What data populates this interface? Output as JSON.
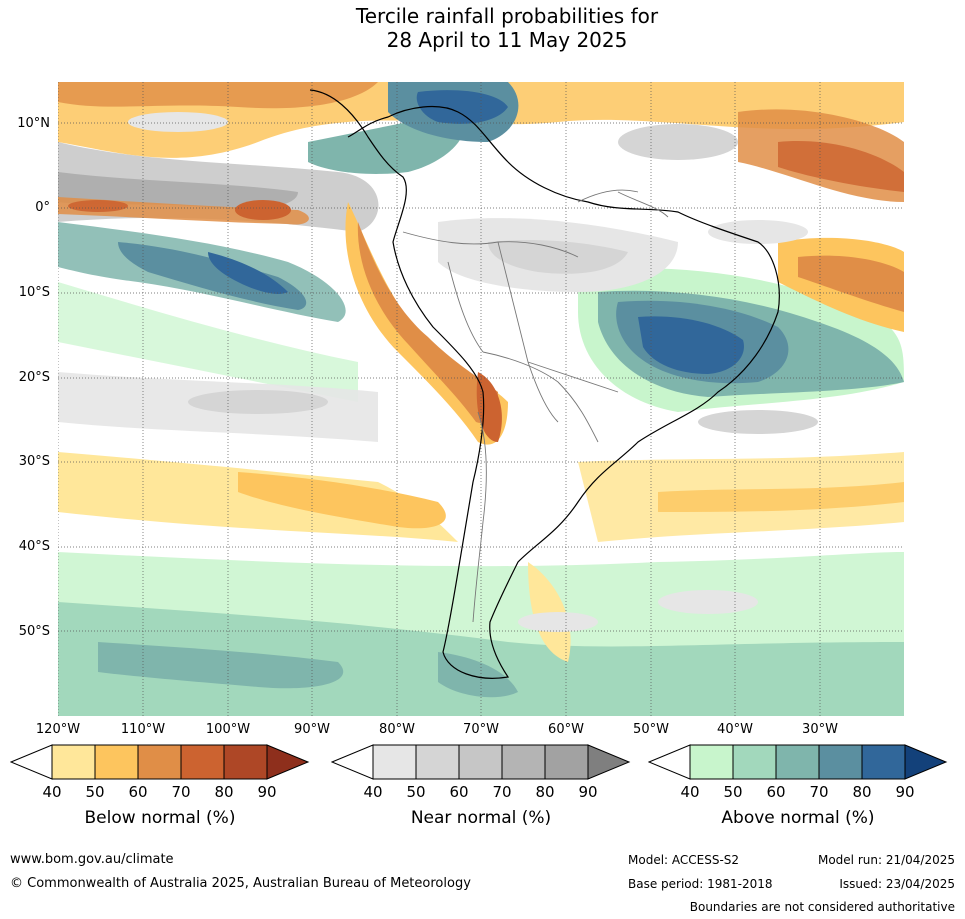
{
  "title": {
    "line1": "Tercile rainfall probabilities for",
    "line2": "28 April to 11 May 2025"
  },
  "map": {
    "lat_labels": [
      "10°N",
      "0°",
      "10°S",
      "20°S",
      "30°S",
      "40°S",
      "50°S"
    ],
    "lon_labels": [
      "120°W",
      "110°W",
      "100°W",
      "90°W",
      "80°W",
      "70°W",
      "60°W",
      "50°W",
      "40°W",
      "30°W"
    ]
  },
  "colorbars": [
    {
      "title": "Below normal (%)",
      "ticks": [
        "40",
        "50",
        "60",
        "70",
        "80",
        "90"
      ],
      "colors": [
        "#ffffff",
        "#ffe79a",
        "#fdc55e",
        "#e08e47",
        "#cc6330",
        "#ae4726",
        "#8e2f1c"
      ]
    },
    {
      "title": "Near normal (%)",
      "ticks": [
        "40",
        "50",
        "60",
        "70",
        "80",
        "90"
      ],
      "colors": [
        "#ffffff",
        "#e6e6e6",
        "#d5d5d5",
        "#c6c6c6",
        "#b4b4b4",
        "#a2a2a2",
        "#7f7f7f"
      ]
    },
    {
      "title": "Above normal (%)",
      "ticks": [
        "40",
        "50",
        "60",
        "70",
        "80",
        "90"
      ],
      "colors": [
        "#ffffff",
        "#c8f5cc",
        "#a2d8bc",
        "#7fb5ac",
        "#5b8fa0",
        "#31679a",
        "#13417a"
      ]
    }
  ],
  "footer": {
    "url": "www.bom.gov.au/climate",
    "copyright": "© Commonwealth of Australia 2025, Australian Bureau of Meteorology",
    "model": "Model: ACCESS-S2",
    "model_run": "Model run: 21/04/2025",
    "base_period": "Base period: 1981-2018",
    "issued": "Issued: 23/04/2025",
    "disclaimer": "Boundaries are not considered authoritative"
  }
}
